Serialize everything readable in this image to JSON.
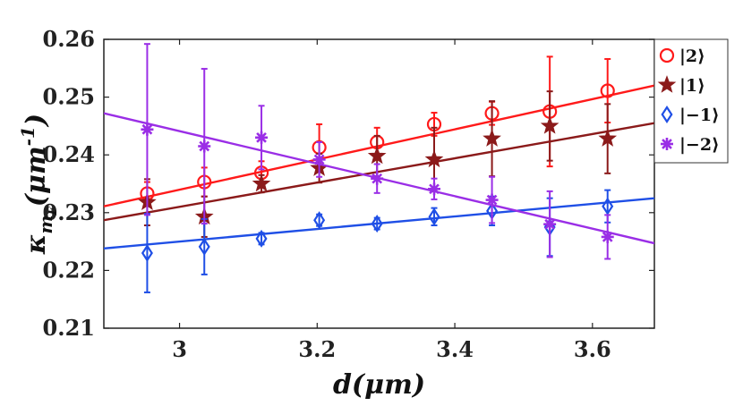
{
  "chart_data": {
    "type": "scatter",
    "title": "",
    "xlabel": "d(μm)",
    "ylabel": "κ_{m_F}(μm^{-1})",
    "xlim": [
      2.89,
      3.69
    ],
    "ylim": [
      0.21,
      0.26
    ],
    "xticks": [
      3.0,
      3.2,
      3.4,
      3.6
    ],
    "yticks": [
      0.21,
      0.22,
      0.23,
      0.24,
      0.25,
      0.26
    ],
    "xtick_labels": [
      "3",
      "3.2",
      "3.4",
      "3.6"
    ],
    "ytick_labels": [
      "0.21",
      "0.22",
      "0.23",
      "0.24",
      "0.25",
      "0.26"
    ],
    "grid": false,
    "legend_position": "outside-top-right",
    "x": [
      2.953,
      3.036,
      3.119,
      3.203,
      3.287,
      3.37,
      3.454,
      3.538,
      3.622
    ],
    "series": [
      {
        "name": "|2⟩",
        "marker": "circle",
        "color": "#ff1a1a",
        "values": [
          0.2333,
          0.2353,
          0.2369,
          0.2413,
          0.2422,
          0.2453,
          0.2472,
          0.2475,
          0.2511
        ],
        "errors": [
          0.002,
          0.0025,
          0.002,
          0.004,
          0.0025,
          0.002,
          0.002,
          0.0095,
          0.0055
        ],
        "fit": [
          0.2311,
          0.252
        ]
      },
      {
        "name": "|1⟩",
        "marker": "star",
        "color": "#8b1a1a",
        "values": [
          0.2318,
          0.2293,
          0.235,
          0.2377,
          0.2398,
          0.2392,
          0.2428,
          0.245,
          0.2428
        ],
        "errors": [
          0.004,
          0.0035,
          0.0015,
          0.0025,
          0.0035,
          0.0055,
          0.0065,
          0.006,
          0.006
        ],
        "fit": [
          0.2287,
          0.2455
        ]
      },
      {
        "name": "|−1⟩",
        "marker": "diamond",
        "color": "#1f4fe6",
        "values": [
          0.223,
          0.2241,
          0.2255,
          0.2287,
          0.2281,
          0.2293,
          0.2303,
          0.2275,
          0.2311
        ],
        "errors": [
          0.0068,
          0.0048,
          0.001,
          0.001,
          0.001,
          0.0015,
          0.0025,
          0.005,
          0.0028
        ],
        "fit": [
          0.2238,
          0.2325
        ]
      },
      {
        "name": "|−2⟩",
        "marker": "asterisk",
        "color": "#9a2ee6",
        "values": [
          0.2444,
          0.2415,
          0.243,
          0.2392,
          0.2359,
          0.2341,
          0.2322,
          0.228,
          0.2258
        ],
        "errors": [
          0.0148,
          0.0134,
          0.0055,
          0.003,
          0.0025,
          0.0018,
          0.004,
          0.0057,
          0.0038
        ],
        "fit": [
          0.2472,
          0.2247
        ]
      }
    ]
  }
}
